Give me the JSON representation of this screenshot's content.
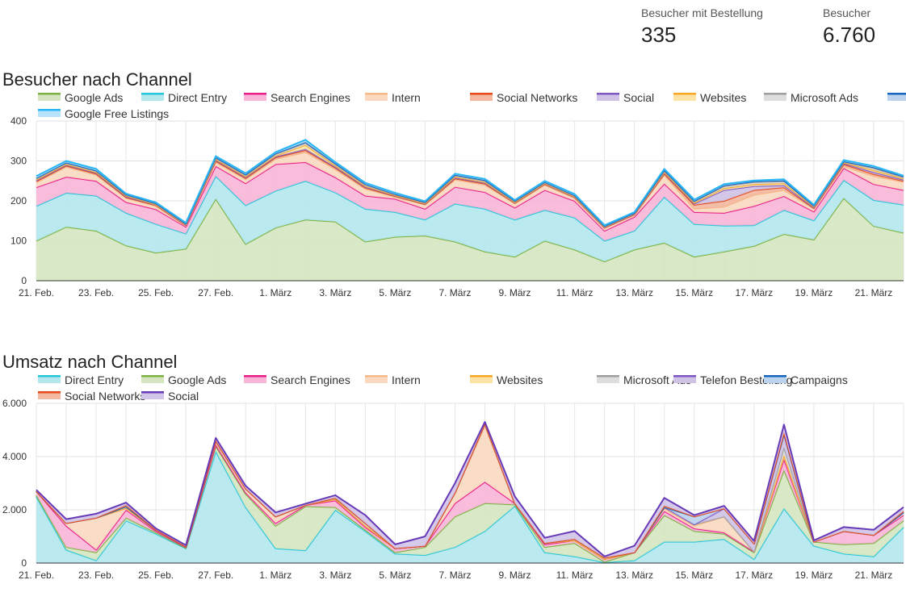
{
  "kpis": [
    {
      "label": "Besucher mit Bestellung",
      "value": "335"
    },
    {
      "label": "Besucher",
      "value": "6.760"
    }
  ],
  "chart_data": [
    {
      "type": "area",
      "stacked": true,
      "title": "Besucher nach Channel",
      "xlabel": "",
      "ylabel": "",
      "ylim": [
        0,
        400
      ],
      "yticks": [
        0,
        100,
        200,
        300,
        400
      ],
      "ytick_labels": [
        "0",
        "100",
        "200",
        "300",
        "400"
      ],
      "x": [
        "21. Feb.",
        "22. Feb.",
        "23. Feb.",
        "24. Feb.",
        "25. Feb.",
        "26. Feb.",
        "27. Feb.",
        "28. Feb.",
        "1. März",
        "2. März",
        "3. März",
        "4. März",
        "5. März",
        "6. März",
        "7. März",
        "8. März",
        "9. März",
        "10. März",
        "11. März",
        "12. März",
        "13. März",
        "14. März",
        "15. März",
        "16. März",
        "17. März",
        "18. März",
        "19. März",
        "20. März",
        "21. März",
        "22. März"
      ],
      "xtick_labels": [
        "21. Feb.",
        "23. Feb.",
        "25. Feb.",
        "27. Feb.",
        "1. März",
        "3. März",
        "5. März",
        "7. März",
        "9. März",
        "11. März",
        "13. März",
        "15. März",
        "17. März",
        "19. März",
        "21. März"
      ],
      "series": [
        {
          "name": "Google Ads",
          "color": "#7cb342",
          "fill": "#d5e5c0",
          "values": [
            100,
            135,
            125,
            88,
            70,
            80,
            205,
            92,
            133,
            153,
            148,
            98,
            110,
            113,
            98,
            73,
            60,
            100,
            78,
            48,
            78,
            95,
            60,
            73,
            87,
            117,
            103,
            207,
            137,
            120
          ]
        },
        {
          "name": "Direct Entry",
          "color": "#26c6da",
          "fill": "#b4e7ee",
          "values": [
            87,
            85,
            88,
            82,
            72,
            38,
            57,
            97,
            92,
            97,
            73,
            82,
            62,
            40,
            95,
            107,
            93,
            77,
            80,
            52,
            47,
            115,
            82,
            65,
            52,
            60,
            48,
            45,
            65,
            70
          ]
        },
        {
          "name": "Search Engines",
          "color": "#e91e8c",
          "fill": "#f9b5d7",
          "values": [
            47,
            40,
            37,
            27,
            37,
            17,
            25,
            55,
            67,
            47,
            38,
            33,
            33,
            27,
            42,
            42,
            30,
            50,
            42,
            25,
            35,
            33,
            30,
            32,
            48,
            35,
            22,
            30,
            40,
            37
          ]
        },
        {
          "name": "Intern",
          "color": "#f6b98a",
          "fill": "#fad9c0",
          "values": [
            12,
            25,
            15,
            10,
            8,
            3,
            10,
            10,
            13,
            25,
            20,
            17,
            5,
            10,
            18,
            18,
            10,
            13,
            7,
            7,
            5,
            22,
            8,
            15,
            28,
            15,
            7,
            5,
            20,
            20
          ]
        },
        {
          "name": "Social Networks",
          "color": "#e64a19",
          "fill": "#f4b7a0",
          "values": [
            3,
            3,
            3,
            2,
            2,
            1,
            3,
            3,
            4,
            5,
            4,
            3,
            2,
            2,
            3,
            3,
            2,
            2,
            2,
            1,
            1,
            3,
            10,
            15,
            12,
            7,
            2,
            5,
            5,
            3
          ]
        },
        {
          "name": "Social",
          "color": "#7e57c2",
          "fill": "#cfc2e6",
          "values": [
            2,
            2,
            2,
            2,
            1,
            1,
            2,
            2,
            2,
            3,
            2,
            2,
            1,
            1,
            2,
            2,
            1,
            1,
            1,
            1,
            1,
            2,
            3,
            27,
            10,
            5,
            1,
            2,
            5,
            3
          ]
        },
        {
          "name": "Websites",
          "color": "#f9a825",
          "fill": "#fbe3a6",
          "values": [
            2,
            2,
            2,
            2,
            1,
            1,
            2,
            2,
            2,
            10,
            3,
            2,
            1,
            1,
            2,
            2,
            1,
            1,
            1,
            1,
            1,
            2,
            2,
            5,
            5,
            5,
            2,
            2,
            5,
            3
          ]
        },
        {
          "name": "Microsoft Ads",
          "color": "#9e9e9e",
          "fill": "#dddddd",
          "values": [
            3,
            3,
            3,
            2,
            2,
            1,
            3,
            3,
            4,
            5,
            4,
            3,
            2,
            2,
            3,
            3,
            2,
            2,
            2,
            1,
            1,
            3,
            3,
            5,
            5,
            5,
            2,
            2,
            5,
            3
          ]
        },
        {
          "name": "Campaigns",
          "color": "#1565c0",
          "fill": "#bcd3ee",
          "values": [
            1,
            1,
            1,
            1,
            1,
            1,
            2,
            2,
            2,
            2,
            2,
            2,
            1,
            1,
            2,
            2,
            1,
            1,
            1,
            1,
            1,
            2,
            2,
            2,
            2,
            2,
            1,
            1,
            2,
            2
          ]
        },
        {
          "name": "Google Free Listings",
          "color": "#29b6f6",
          "fill": "#b8e3fa",
          "values": [
            5,
            4,
            4,
            2,
            2,
            2,
            3,
            3,
            3,
            6,
            3,
            3,
            3,
            2,
            3,
            3,
            2,
            3,
            3,
            2,
            2,
            3,
            3,
            3,
            2,
            3,
            2,
            3,
            3,
            2
          ]
        }
      ]
    },
    {
      "type": "area",
      "stacked": true,
      "title": "Umsatz nach Channel",
      "xlabel": "",
      "ylabel": "",
      "ylim": [
        0,
        6000
      ],
      "yticks": [
        0,
        2000,
        4000,
        6000
      ],
      "ytick_labels": [
        "0",
        "2.000",
        "4.000",
        "6.000"
      ],
      "x": [
        "21. Feb.",
        "22. Feb.",
        "23. Feb.",
        "24. Feb.",
        "25. Feb.",
        "26. Feb.",
        "27. Feb.",
        "28. Feb.",
        "1. März",
        "2. März",
        "3. März",
        "4. März",
        "5. März",
        "6. März",
        "7. März",
        "8. März",
        "9. März",
        "10. März",
        "11. März",
        "12. März",
        "13. März",
        "14. März",
        "15. März",
        "16. März",
        "17. März",
        "18. März",
        "19. März",
        "20. März",
        "21. März",
        "22. März"
      ],
      "xtick_labels": [
        "21. Feb.",
        "23. Feb.",
        "25. Feb.",
        "27. Feb.",
        "1. März",
        "3. März",
        "5. März",
        "7. März",
        "9. März",
        "11. März",
        "13. März",
        "15. März",
        "17. März",
        "19. März",
        "21. März"
      ],
      "series": [
        {
          "name": "Direct Entry",
          "color": "#26c6da",
          "fill": "#b4e7ee",
          "values": [
            2500,
            500,
            100,
            1600,
            1100,
            550,
            4200,
            2100,
            550,
            480,
            2000,
            1200,
            350,
            300,
            600,
            1200,
            2150,
            400,
            250,
            30,
            100,
            800,
            800,
            900,
            150,
            2050,
            650,
            350,
            250,
            1350
          ]
        },
        {
          "name": "Google Ads",
          "color": "#7cb342",
          "fill": "#d5e5c0",
          "values": [
            50,
            100,
            300,
            100,
            50,
            20,
            200,
            500,
            850,
            1650,
            100,
            50,
            50,
            300,
            1150,
            1050,
            50,
            200,
            500,
            20,
            300,
            1000,
            400,
            200,
            250,
            1450,
            150,
            350,
            500,
            250
          ]
        },
        {
          "name": "Search Engines",
          "color": "#e91e8c",
          "fill": "#f9b5d7",
          "values": [
            150,
            800,
            100,
            300,
            50,
            30,
            50,
            50,
            100,
            50,
            250,
            100,
            150,
            50,
            500,
            800,
            50,
            100,
            100,
            100,
            0,
            150,
            100,
            50,
            30,
            400,
            0,
            500,
            300,
            200
          ]
        },
        {
          "name": "Intern",
          "color": "#f6b98a",
          "fill": "#fad9c0",
          "values": [
            0,
            100,
            1200,
            50,
            50,
            20,
            100,
            150,
            250,
            0,
            50,
            50,
            0,
            0,
            400,
            2100,
            0,
            50,
            0,
            0,
            0,
            100,
            100,
            600,
            0,
            100,
            0,
            0,
            0,
            100
          ]
        },
        {
          "name": "Websites",
          "color": "#f9a825",
          "fill": "#fbe3a6",
          "values": [
            0,
            0,
            0,
            20,
            0,
            0,
            50,
            0,
            0,
            0,
            0,
            0,
            0,
            0,
            0,
            100,
            0,
            0,
            0,
            0,
            0,
            50,
            50,
            0,
            0,
            50,
            0,
            0,
            0,
            0
          ]
        },
        {
          "name": "Microsoft Ads",
          "color": "#9e9e9e",
          "fill": "#dddddd",
          "values": [
            0,
            0,
            0,
            50,
            0,
            0,
            0,
            0,
            0,
            0,
            50,
            100,
            0,
            0,
            0,
            0,
            0,
            0,
            50,
            50,
            0,
            0,
            0,
            0,
            0,
            300,
            0,
            0,
            0,
            0
          ]
        },
        {
          "name": "Telefon Bestellung",
          "color": "#7e57c2",
          "fill": "#cfc2e6",
          "values": [
            0,
            0,
            0,
            0,
            0,
            0,
            0,
            0,
            0,
            0,
            0,
            0,
            0,
            0,
            0,
            0,
            0,
            0,
            0,
            0,
            0,
            0,
            0,
            300,
            300,
            500,
            0,
            0,
            0,
            0
          ]
        },
        {
          "name": "Campaigns",
          "color": "#1565c0",
          "fill": "#bcd3ee",
          "values": [
            0,
            0,
            0,
            0,
            0,
            0,
            0,
            0,
            0,
            0,
            0,
            0,
            0,
            0,
            0,
            0,
            0,
            0,
            0,
            0,
            0,
            0,
            300,
            0,
            0,
            0,
            0,
            0,
            0,
            0
          ]
        },
        {
          "name": "Social Networks",
          "color": "#e64a19",
          "fill": "#f4b7a0",
          "values": [
            0,
            0,
            0,
            50,
            0,
            0,
            0,
            0,
            0,
            0,
            0,
            0,
            0,
            0,
            0,
            0,
            0,
            0,
            0,
            0,
            0,
            50,
            0,
            0,
            0,
            50,
            0,
            0,
            0,
            50
          ]
        },
        {
          "name": "Social",
          "color": "#673ab7",
          "fill": "#d1c4e9",
          "values": [
            50,
            150,
            150,
            100,
            50,
            50,
            100,
            100,
            150,
            50,
            100,
            300,
            150,
            350,
            350,
            50,
            250,
            200,
            300,
            50,
            250,
            300,
            50,
            100,
            100,
            300,
            50,
            150,
            200,
            150
          ]
        }
      ]
    }
  ]
}
